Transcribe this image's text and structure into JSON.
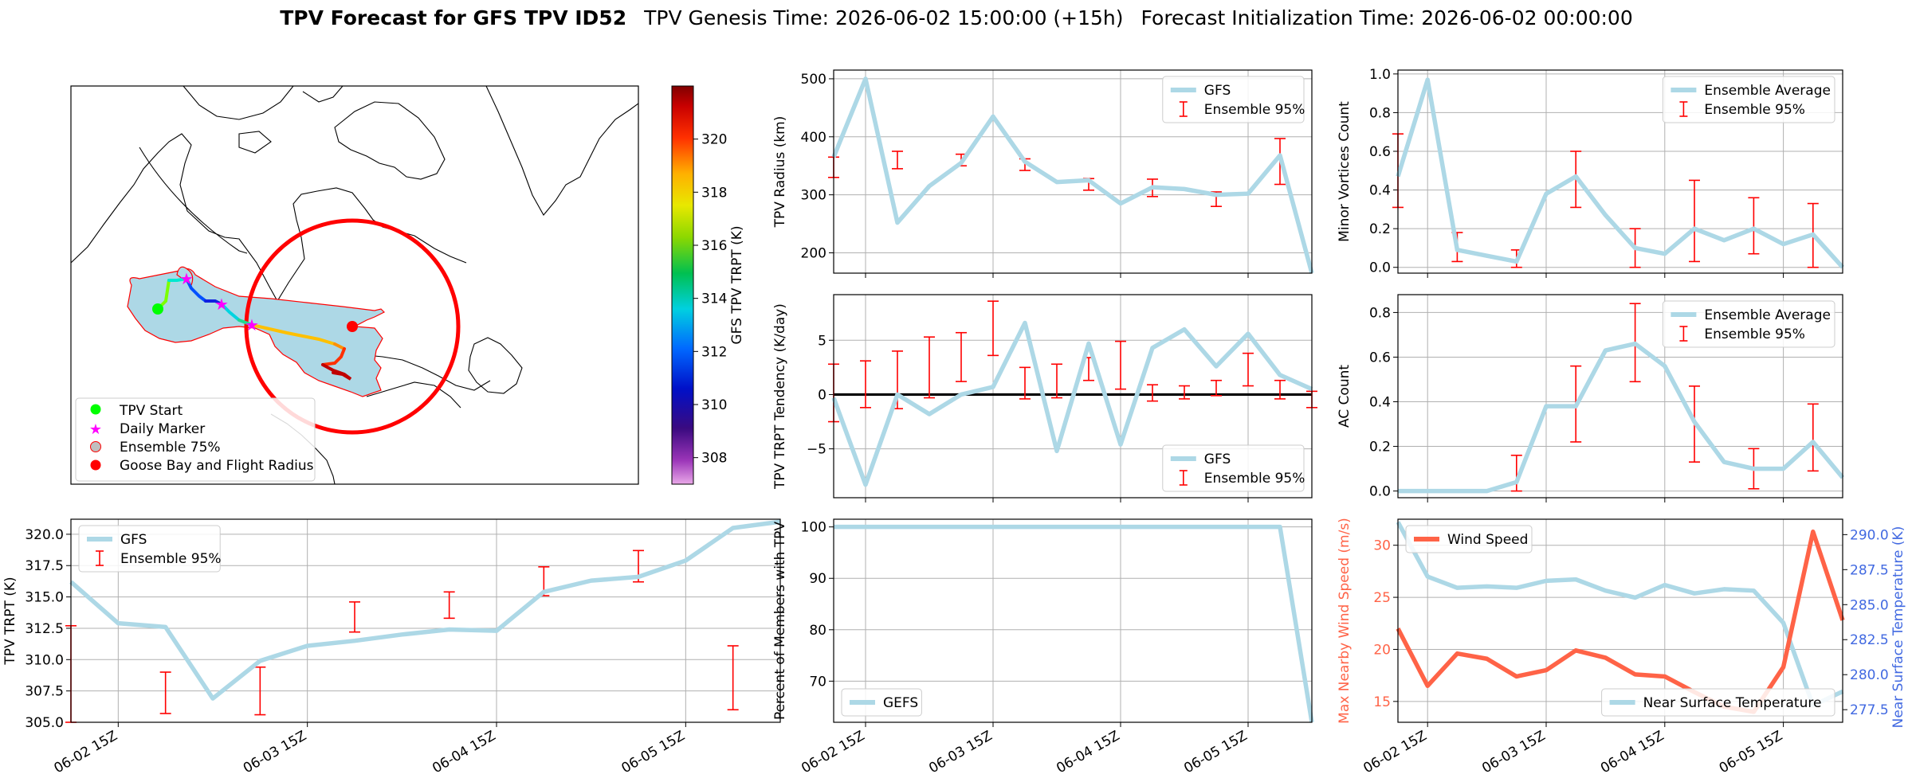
{
  "title": {
    "bold": "TPV Forecast for GFS TPV ID52",
    "genesis": "TPV Genesis Time: 2026-06-02 15:00:00 (+15h)",
    "init": "Forecast Initialization Time: 2026-06-02 00:00:00"
  },
  "colors": {
    "gfs_line": "#add8e6",
    "ens_bar": "#ff0000",
    "wind": "#ff6347",
    "temp_axis": "#4169e1",
    "ensemble_fill": "#add8e6",
    "flight_radius": "#ff0000",
    "start_marker": "#00ff00",
    "daily_marker": "#ff00ff",
    "goose_bay": "#ff0000"
  },
  "x_ticks": [
    "06-02 15Z",
    "06-03 15Z",
    "06-04 15Z",
    "06-05 15Z"
  ],
  "map": {
    "legend": [
      {
        "label": "TPV Start",
        "icon": "green-circle"
      },
      {
        "label": "Daily Marker",
        "icon": "magenta-star"
      },
      {
        "label": "Ensemble 75%",
        "icon": "lightblue-circle"
      },
      {
        "label": "Goose Bay and Flight Radius",
        "icon": "red-circle"
      }
    ],
    "colorbar": {
      "label": "GFS TPV TRPT (K)",
      "min": 307.0,
      "max": 322.0,
      "ticks": [
        "308",
        "310",
        "312",
        "314",
        "316",
        "318",
        "320"
      ]
    }
  },
  "chart_data": [
    {
      "id": "trpt",
      "type": "line",
      "ylabel": "TPV TRPT (K)",
      "ylim": [
        305.0,
        321.2
      ],
      "yticks": [
        "305.0",
        "307.5",
        "310.0",
        "312.5",
        "315.0",
        "317.5",
        "320.0"
      ],
      "legend": [
        "GFS",
        "Ensemble 95%"
      ],
      "series": [
        {
          "name": "GFS",
          "values": [
            316.2,
            312.9,
            312.6,
            306.9,
            309.9,
            311.1,
            311.5,
            312.0,
            312.4,
            312.3,
            315.4,
            316.3,
            316.6,
            317.9,
            320.5,
            321.0
          ]
        }
      ],
      "errorbars": [
        {
          "i": 0,
          "lo": 305.0,
          "hi": 312.7
        },
        {
          "i": 2,
          "lo": 305.7,
          "hi": 309.0
        },
        {
          "i": 4,
          "lo": 305.6,
          "hi": 309.4
        },
        {
          "i": 6,
          "lo": 312.2,
          "hi": 314.6
        },
        {
          "i": 8,
          "lo": 313.3,
          "hi": 315.4
        },
        {
          "i": 10,
          "lo": 315.1,
          "hi": 317.4
        },
        {
          "i": 12,
          "lo": 316.2,
          "hi": 318.7
        },
        {
          "i": 14,
          "lo": 306.0,
          "hi": 311.1
        }
      ]
    },
    {
      "id": "radius",
      "type": "line",
      "ylabel": "TPV Radius (km)",
      "ylim": [
        165,
        515
      ],
      "yticks": [
        "200",
        "300",
        "400",
        "500"
      ],
      "legend": [
        "GFS",
        "Ensemble 95%"
      ],
      "series": [
        {
          "name": "GFS",
          "values": [
            365,
            500,
            252,
            315,
            355,
            435,
            357,
            322,
            325,
            285,
            313,
            310,
            300,
            302,
            368,
            165
          ]
        }
      ],
      "errorbars": [
        {
          "i": 0,
          "lo": 330,
          "hi": 365
        },
        {
          "i": 2,
          "lo": 345,
          "hi": 375
        },
        {
          "i": 4,
          "lo": 350,
          "hi": 370
        },
        {
          "i": 6,
          "lo": 342,
          "hi": 362
        },
        {
          "i": 8,
          "lo": 308,
          "hi": 328
        },
        {
          "i": 10,
          "lo": 297,
          "hi": 327
        },
        {
          "i": 12,
          "lo": 280,
          "hi": 305
        },
        {
          "i": 14,
          "lo": 318,
          "hi": 397
        }
      ]
    },
    {
      "id": "tendency",
      "type": "line",
      "ylabel": "TPV TRPT Tendency (K/day)",
      "ylim": [
        -9.5,
        9.2
      ],
      "yticks": [
        "−5",
        "0",
        "5"
      ],
      "zero_line": true,
      "legend": [
        "GFS",
        "Ensemble 95%"
      ],
      "series": [
        {
          "name": "GFS",
          "values": [
            -0.3,
            -8.3,
            0.0,
            -1.8,
            0.0,
            0.7,
            6.6,
            -5.2,
            4.7,
            -4.6,
            4.3,
            6.0,
            2.6,
            5.6,
            1.8,
            0.5
          ]
        }
      ],
      "errorbars": [
        {
          "i": 0,
          "lo": -2.5,
          "hi": 2.8
        },
        {
          "i": 1,
          "lo": -1.2,
          "hi": 3.1
        },
        {
          "i": 2,
          "lo": -1.3,
          "hi": 4.0
        },
        {
          "i": 3,
          "lo": -0.3,
          "hi": 5.3
        },
        {
          "i": 4,
          "lo": 1.2,
          "hi": 5.7
        },
        {
          "i": 5,
          "lo": 3.6,
          "hi": 8.6
        },
        {
          "i": 6,
          "lo": -0.4,
          "hi": 2.5
        },
        {
          "i": 7,
          "lo": -0.3,
          "hi": 2.8
        },
        {
          "i": 8,
          "lo": 1.3,
          "hi": 3.4
        },
        {
          "i": 9,
          "lo": 0.5,
          "hi": 4.9
        },
        {
          "i": 10,
          "lo": -0.6,
          "hi": 0.9
        },
        {
          "i": 11,
          "lo": -0.4,
          "hi": 0.8
        },
        {
          "i": 12,
          "lo": -0.1,
          "hi": 1.3
        },
        {
          "i": 13,
          "lo": 0.8,
          "hi": 3.8
        },
        {
          "i": 14,
          "lo": -0.4,
          "hi": 1.3
        },
        {
          "i": 15,
          "lo": -1.2,
          "hi": 0.3
        }
      ]
    },
    {
      "id": "members",
      "type": "line",
      "ylabel": "Percent of Members with TPV",
      "ylim": [
        62,
        101.5
      ],
      "yticks": [
        "70",
        "80",
        "90",
        "100"
      ],
      "legend": [
        "GEFS"
      ],
      "series": [
        {
          "name": "GEFS",
          "values": [
            100,
            100,
            100,
            100,
            100,
            100,
            100,
            100,
            100,
            100,
            100,
            100,
            100,
            100,
            100,
            62
          ]
        }
      ],
      "errorbars": []
    },
    {
      "id": "minor",
      "type": "line",
      "ylabel": "Minor Vortices Count",
      "ylim": [
        -0.03,
        1.02
      ],
      "yticks": [
        "0.0",
        "0.2",
        "0.4",
        "0.6",
        "0.8",
        "1.0"
      ],
      "legend": [
        "Ensemble Average",
        "Ensemble 95%"
      ],
      "series": [
        {
          "name": "Ensemble Average",
          "values": [
            0.47,
            0.97,
            0.09,
            0.06,
            0.03,
            0.38,
            0.47,
            0.27,
            0.1,
            0.07,
            0.2,
            0.14,
            0.2,
            0.12,
            0.17,
            0.0
          ]
        }
      ],
      "errorbars": [
        {
          "i": 0,
          "lo": 0.31,
          "hi": 0.69
        },
        {
          "i": 2,
          "lo": 0.03,
          "hi": 0.18
        },
        {
          "i": 4,
          "lo": 0.0,
          "hi": 0.09
        },
        {
          "i": 6,
          "lo": 0.31,
          "hi": 0.6
        },
        {
          "i": 8,
          "lo": 0.0,
          "hi": 0.2
        },
        {
          "i": 10,
          "lo": 0.03,
          "hi": 0.45
        },
        {
          "i": 12,
          "lo": 0.07,
          "hi": 0.36
        },
        {
          "i": 14,
          "lo": 0.0,
          "hi": 0.33
        }
      ]
    },
    {
      "id": "ac",
      "type": "line",
      "ylabel": "AC Count",
      "ylim": [
        -0.03,
        0.88
      ],
      "yticks": [
        "0.0",
        "0.2",
        "0.4",
        "0.6",
        "0.8"
      ],
      "legend": [
        "Ensemble Average",
        "Ensemble 95%"
      ],
      "series": [
        {
          "name": "Ensemble Average",
          "values": [
            0.0,
            0.0,
            0.0,
            0.0,
            0.04,
            0.38,
            0.38,
            0.63,
            0.66,
            0.56,
            0.31,
            0.13,
            0.1,
            0.1,
            0.22,
            0.06
          ]
        }
      ],
      "errorbars": [
        {
          "i": 2,
          "lo": 0.0,
          "hi": 0.0
        },
        {
          "i": 4,
          "lo": 0.0,
          "hi": 0.16
        },
        {
          "i": 6,
          "lo": 0.22,
          "hi": 0.56
        },
        {
          "i": 8,
          "lo": 0.49,
          "hi": 0.84
        },
        {
          "i": 10,
          "lo": 0.13,
          "hi": 0.47
        },
        {
          "i": 12,
          "lo": 0.01,
          "hi": 0.19
        },
        {
          "i": 14,
          "lo": 0.09,
          "hi": 0.39
        }
      ]
    },
    {
      "id": "wind",
      "type": "line",
      "ylabel": "Max Nearby Wind Speed (m/s)",
      "ylim": [
        13.0,
        32.5
      ],
      "yticks": [
        "15",
        "20",
        "25",
        "30"
      ],
      "legend": [
        "Wind Speed"
      ],
      "series": [
        {
          "name": "Wind Speed",
          "values": [
            22.0,
            16.5,
            19.6,
            19.1,
            17.4,
            18.0,
            19.9,
            19.2,
            17.6,
            17.4,
            15.9,
            14.5,
            14.0,
            18.3,
            31.3,
            22.8
          ]
        }
      ],
      "errorbars": [],
      "secondary": {
        "ylabel": "Near Surface Temperature (K)",
        "ylim": [
          276.6,
          291.1
        ],
        "yticks": [
          "277.5",
          "280.0",
          "282.5",
          "285.0",
          "287.5",
          "290.0"
        ],
        "legend": [
          "Near Surface Temperature"
        ],
        "series": [
          {
            "name": "Near Surface Temperature",
            "values": [
              290.9,
              287.0,
              286.2,
              286.3,
              286.2,
              286.7,
              286.8,
              286.0,
              285.5,
              286.4,
              285.8,
              286.1,
              286.0,
              283.7,
              277.8,
              278.8
            ]
          }
        ]
      }
    }
  ]
}
